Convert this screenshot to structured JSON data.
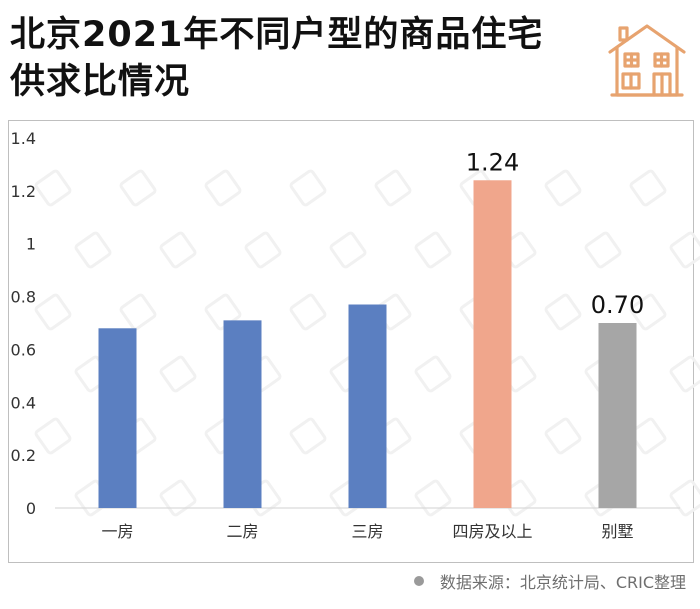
{
  "title": {
    "line1": "北京2021年不同户型的商品住宅",
    "line2": "供求比情况"
  },
  "icon": "house-icon",
  "colors": {
    "blue": "#5b7fc1",
    "highlight": "#f0a68c",
    "gray": "#a6a6a6",
    "icon": "#e7a36f"
  },
  "chart_data": {
    "type": "bar",
    "title": "北京2021年不同户型的商品住宅供求比情况",
    "categories": [
      "一房",
      "二房",
      "三房",
      "四房及以上",
      "别墅"
    ],
    "values": [
      0.68,
      0.71,
      0.77,
      1.24,
      0.7
    ],
    "data_labels": [
      "",
      "",
      "",
      "1.24",
      "0.70"
    ],
    "bar_colors": [
      "#5b7fc1",
      "#5b7fc1",
      "#5b7fc1",
      "#f0a68c",
      "#a6a6a6"
    ],
    "ylim": [
      0,
      1.4
    ],
    "yticks": [
      0,
      0.2,
      0.4,
      0.6,
      0.8,
      1,
      1.2,
      1.4
    ],
    "ytick_labels": [
      "0",
      "0.2",
      "0.4",
      "0.6",
      "0.8",
      "1",
      "1.2",
      "1.4"
    ],
    "xlabel": "",
    "ylabel": "",
    "grid": false
  },
  "source": {
    "text": "数据来源：北京统计局、CRIC整理"
  }
}
